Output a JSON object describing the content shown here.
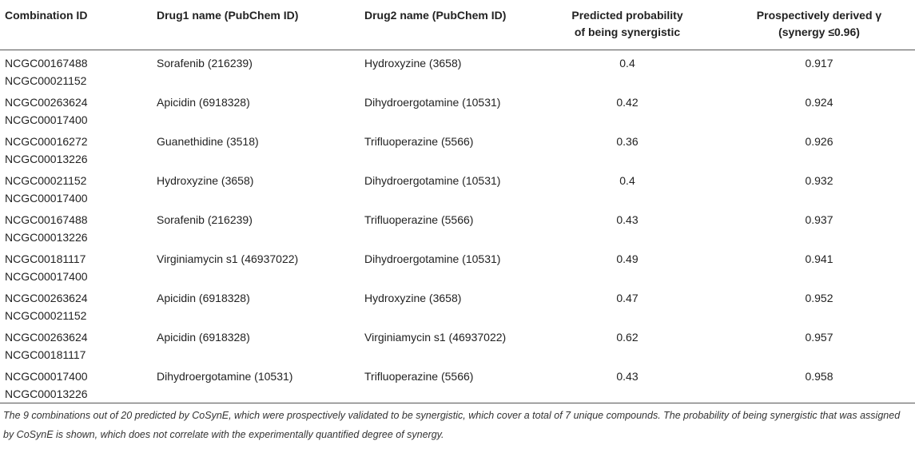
{
  "table": {
    "header": [
      [
        "Combination ID"
      ],
      [
        "Drug1 name (PubChem ID)"
      ],
      [
        "Drug2 name (PubChem ID)"
      ],
      [
        "Predicted probability",
        "of being synergistic"
      ],
      [
        "Prospectively derived γ",
        "(synergy ≤0.96)"
      ]
    ],
    "rows": [
      [
        [
          "NCGC00167488",
          "NCGC00021152"
        ],
        "Sorafenib (216239)",
        "Hydroxyzine (3658)",
        0.4,
        0.917
      ],
      [
        [
          "NCGC00263624",
          "NCGC00017400"
        ],
        "Apicidin (6918328)",
        "Dihydroergotamine (10531)",
        0.42,
        0.924
      ],
      [
        [
          "NCGC00016272",
          "NCGC00013226"
        ],
        "Guanethidine (3518)",
        "Trifluoperazine (5566)",
        0.36,
        0.926
      ],
      [
        [
          "NCGC00021152",
          "NCGC00017400"
        ],
        "Hydroxyzine (3658)",
        "Dihydroergotamine (10531)",
        0.4,
        0.932
      ],
      [
        [
          "NCGC00167488",
          "NCGC00013226"
        ],
        "Sorafenib (216239)",
        "Trifluoperazine (5566)",
        0.43,
        0.937
      ],
      [
        [
          "NCGC00181117",
          "NCGC00017400"
        ],
        "Virginiamycin s1 (46937022)",
        "Dihydroergotamine (10531)",
        0.49,
        0.941
      ],
      [
        [
          "NCGC00263624",
          "NCGC00021152"
        ],
        "Apicidin (6918328)",
        "Hydroxyzine (3658)",
        0.47,
        0.952
      ],
      [
        [
          "NCGC00263624",
          "NCGC00181117"
        ],
        "Apicidin (6918328)",
        "Virginiamycin s1 (46937022)",
        0.62,
        0.957
      ],
      [
        [
          "NCGC00017400",
          "NCGC00013226"
        ],
        "Dihydroergotamine (10531)",
        "Trifluoperazine (5566)",
        0.43,
        0.958
      ]
    ]
  },
  "caption": "The 9 combinations out of 20 predicted by CoSynE, which were prospectively validated to be synergistic, which cover a total of 7 unique compounds. The probability of being synergistic that was assigned by CoSynE is shown, which does not correlate with the experimentally quantified degree of synergy."
}
